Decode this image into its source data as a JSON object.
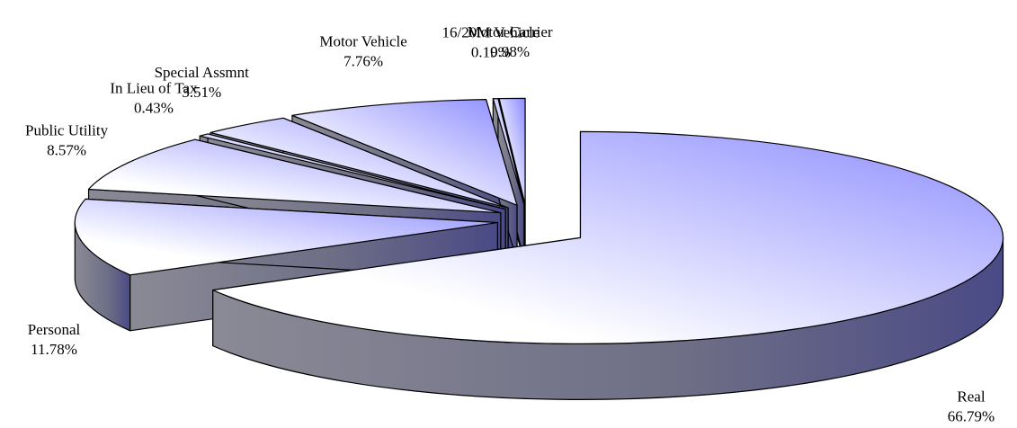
{
  "chart_data": {
    "type": "pie",
    "categories": [
      "Real",
      "Personal",
      "Public Utility",
      "In Lieu of Tax",
      "Special Assmnt",
      "Motor Vehicle",
      "16/20M Vehicle",
      "Motor Carrier"
    ],
    "values": [
      66.79,
      11.78,
      8.57,
      0.43,
      3.51,
      7.76,
      0.19,
      0.98
    ],
    "value_labels": [
      "66.79%",
      "11.78%",
      "8.57%",
      "0.43%",
      "3.51%",
      "7.76%",
      "0.19%",
      "0.98%"
    ],
    "colors": {
      "top": "#8c8cff",
      "side": "#4a4a86"
    }
  }
}
